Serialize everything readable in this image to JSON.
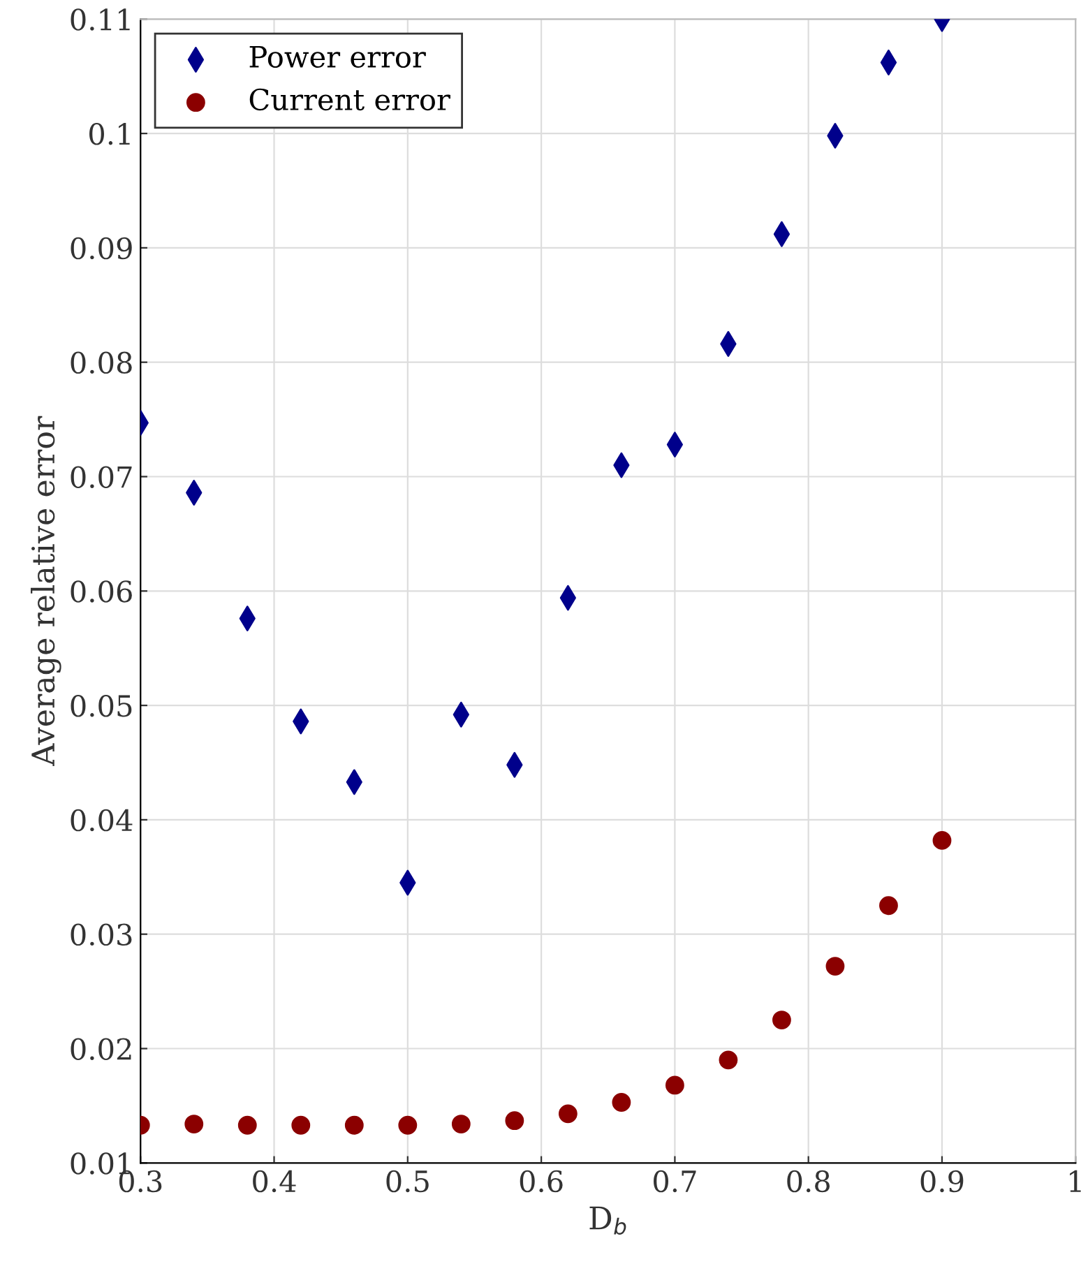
{
  "chart_data": {
    "type": "scatter",
    "xlabel": "D$_{b}$",
    "ylabel": "Average relative error",
    "x": [
      0.3,
      0.34,
      0.38,
      0.42,
      0.46,
      0.5,
      0.54,
      0.58,
      0.62,
      0.66,
      0.7,
      0.74,
      0.78,
      0.82,
      0.86,
      0.9
    ],
    "series": [
      {
        "name": "Power error",
        "color": "#00008b",
        "marker": "diamond",
        "values": [
          0.0747,
          0.0686,
          0.0576,
          0.0486,
          0.0433,
          0.0345,
          0.0492,
          0.0448,
          0.0594,
          0.071,
          0.0728,
          0.0816,
          0.0912,
          0.0998,
          0.1062,
          0.11
        ]
      },
      {
        "name": "Current error",
        "color": "#8b0000",
        "marker": "circle",
        "values": [
          0.0133,
          0.0134,
          0.0133,
          0.0133,
          0.0133,
          0.0133,
          0.0134,
          0.0137,
          0.0143,
          0.0153,
          0.0168,
          0.019,
          0.0225,
          0.0272,
          0.0325,
          0.0382
        ]
      }
    ],
    "xlim": [
      0.3,
      1
    ],
    "xticks": [
      0.3,
      0.4,
      0.5,
      0.6,
      0.7,
      0.8,
      0.9,
      1
    ],
    "ylim": [
      0.01,
      0.11
    ],
    "yticks": [
      0.01,
      0.02,
      0.03,
      0.04,
      0.05,
      0.06,
      0.07,
      0.08,
      0.09,
      0.1,
      0.11
    ],
    "grid": true,
    "legend": "top left"
  }
}
